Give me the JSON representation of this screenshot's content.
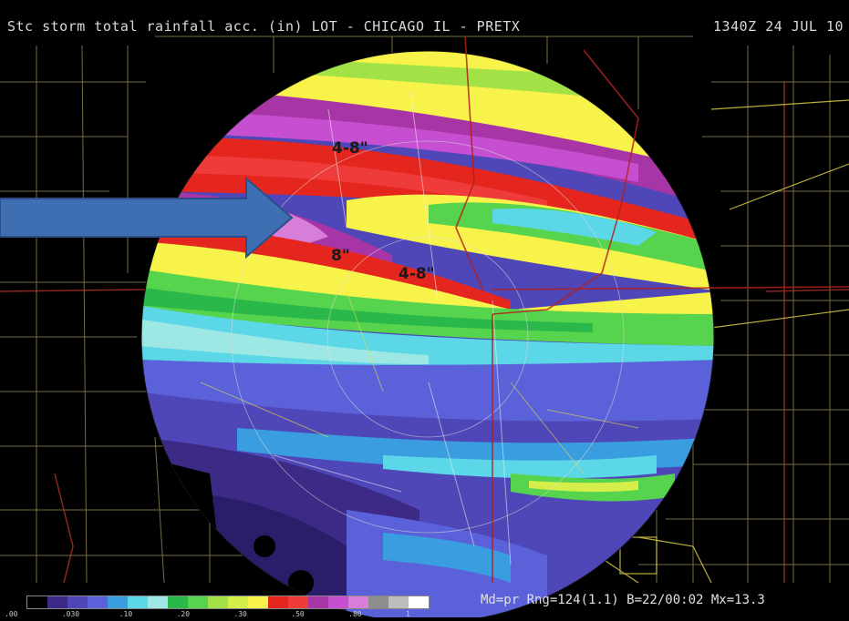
{
  "header": {
    "title": "Stc storm total rainfall acc. (in) LOT - CHICAGO IL - PRETX",
    "time": "1340Z 24 JUL 10"
  },
  "annotations": [
    "4-8\"",
    "8\"",
    "4-8\""
  ],
  "footer": {
    "status": "Md=pr Rng=124(1.1) B=22/00:02 Mx=13.3"
  },
  "legend": {
    "colors": [
      "#000000",
      "#3c2a86",
      "#4f46b8",
      "#5b62d9",
      "#3a9de0",
      "#5cd7e8",
      "#9de8e4",
      "#2bb84a",
      "#57d44d",
      "#a3e246",
      "#d6ee4a",
      "#f7f34a",
      "#e5261f",
      "#f03b3b",
      "#a835a6",
      "#c64fd1",
      "#d77fd8",
      "#8d8d8d",
      "#bdbdbd",
      "#ffffff"
    ],
    "tick_labels": [
      ".00",
      "",
      ".030",
      "",
      ".10",
      "",
      ".20",
      "",
      ".30",
      "",
      ".50",
      "",
      ".80",
      "",
      "1"
    ]
  },
  "colors": {
    "red": "#e5261f",
    "magenta": "#a835a6",
    "yellow": "#f7f34a",
    "green": "#57d44d",
    "cyan": "#5cd7e8",
    "blue": "#4f46b8",
    "arrow": "#3f6fb3"
  }
}
